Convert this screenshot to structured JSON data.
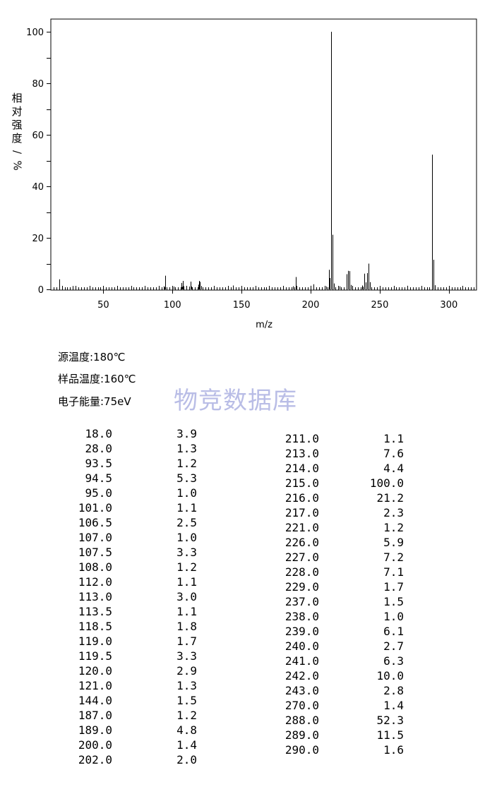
{
  "chart_data": {
    "type": "bar",
    "xlabel": "m/z",
    "ylabel": "相对强度/%",
    "xlim": [
      12,
      320
    ],
    "ylim": [
      0,
      100
    ],
    "xticks": [
      50,
      100,
      150,
      200,
      250,
      300
    ],
    "yticks": [
      0,
      20,
      40,
      60,
      80,
      100
    ],
    "grid": false,
    "peaks": [
      {
        "mz": 18.0,
        "intensity": 3.9
      },
      {
        "mz": 28.0,
        "intensity": 1.3
      },
      {
        "mz": 93.5,
        "intensity": 1.2
      },
      {
        "mz": 94.5,
        "intensity": 5.3
      },
      {
        "mz": 95.0,
        "intensity": 1.0
      },
      {
        "mz": 101.0,
        "intensity": 1.1
      },
      {
        "mz": 106.5,
        "intensity": 2.5
      },
      {
        "mz": 107.0,
        "intensity": 1.0
      },
      {
        "mz": 107.5,
        "intensity": 3.3
      },
      {
        "mz": 108.0,
        "intensity": 1.2
      },
      {
        "mz": 112.0,
        "intensity": 1.1
      },
      {
        "mz": 113.0,
        "intensity": 3.0
      },
      {
        "mz": 113.5,
        "intensity": 1.1
      },
      {
        "mz": 118.5,
        "intensity": 1.8
      },
      {
        "mz": 119.0,
        "intensity": 1.7
      },
      {
        "mz": 119.5,
        "intensity": 3.3
      },
      {
        "mz": 120.0,
        "intensity": 2.9
      },
      {
        "mz": 121.0,
        "intensity": 1.3
      },
      {
        "mz": 144.0,
        "intensity": 1.5
      },
      {
        "mz": 187.0,
        "intensity": 1.2
      },
      {
        "mz": 189.0,
        "intensity": 4.8
      },
      {
        "mz": 200.0,
        "intensity": 1.4
      },
      {
        "mz": 202.0,
        "intensity": 2.0
      },
      {
        "mz": 211.0,
        "intensity": 1.1
      },
      {
        "mz": 213.0,
        "intensity": 7.6
      },
      {
        "mz": 214.0,
        "intensity": 4.4
      },
      {
        "mz": 215.0,
        "intensity": 100.0
      },
      {
        "mz": 216.0,
        "intensity": 21.2
      },
      {
        "mz": 217.0,
        "intensity": 2.3
      },
      {
        "mz": 221.0,
        "intensity": 1.2
      },
      {
        "mz": 226.0,
        "intensity": 5.9
      },
      {
        "mz": 227.0,
        "intensity": 7.2
      },
      {
        "mz": 228.0,
        "intensity": 7.1
      },
      {
        "mz": 229.0,
        "intensity": 1.7
      },
      {
        "mz": 237.0,
        "intensity": 1.5
      },
      {
        "mz": 238.0,
        "intensity": 1.0
      },
      {
        "mz": 239.0,
        "intensity": 6.1
      },
      {
        "mz": 240.0,
        "intensity": 2.7
      },
      {
        "mz": 241.0,
        "intensity": 6.3
      },
      {
        "mz": 242.0,
        "intensity": 10.0
      },
      {
        "mz": 243.0,
        "intensity": 2.8
      },
      {
        "mz": 270.0,
        "intensity": 1.4
      },
      {
        "mz": 288.0,
        "intensity": 52.3
      },
      {
        "mz": 289.0,
        "intensity": 11.5
      },
      {
        "mz": 290.0,
        "intensity": 1.6
      }
    ]
  },
  "ylabel_chars": [
    "相",
    "对",
    "强",
    "度",
    "/",
    "%"
  ],
  "conditions": {
    "source_temp": "源温度:180℃",
    "sample_temp": "样品温度:160℃",
    "electron_energy": "电子能量:75eV"
  },
  "watermark": "物竞数据库",
  "peak_table": {
    "left": [
      [
        "18.0",
        "3.9"
      ],
      [
        "28.0",
        "1.3"
      ],
      [
        "93.5",
        "1.2"
      ],
      [
        "94.5",
        "5.3"
      ],
      [
        "95.0",
        "1.0"
      ],
      [
        "101.0",
        "1.1"
      ],
      [
        "106.5",
        "2.5"
      ],
      [
        "107.0",
        "1.0"
      ],
      [
        "107.5",
        "3.3"
      ],
      [
        "108.0",
        "1.2"
      ],
      [
        "112.0",
        "1.1"
      ],
      [
        "113.0",
        "3.0"
      ],
      [
        "113.5",
        "1.1"
      ],
      [
        "118.5",
        "1.8"
      ],
      [
        "119.0",
        "1.7"
      ],
      [
        "119.5",
        "3.3"
      ],
      [
        "120.0",
        "2.9"
      ],
      [
        "121.0",
        "1.3"
      ],
      [
        "144.0",
        "1.5"
      ],
      [
        "187.0",
        "1.2"
      ],
      [
        "189.0",
        "4.8"
      ],
      [
        "200.0",
        "1.4"
      ],
      [
        "202.0",
        "2.0"
      ]
    ],
    "right": [
      [
        "211.0",
        "1.1"
      ],
      [
        "213.0",
        "7.6"
      ],
      [
        "214.0",
        "4.4"
      ],
      [
        "215.0",
        "100.0"
      ],
      [
        "216.0",
        "21.2"
      ],
      [
        "217.0",
        "2.3"
      ],
      [
        "221.0",
        "1.2"
      ],
      [
        "226.0",
        "5.9"
      ],
      [
        "227.0",
        "7.2"
      ],
      [
        "228.0",
        "7.1"
      ],
      [
        "229.0",
        "1.7"
      ],
      [
        "237.0",
        "1.5"
      ],
      [
        "238.0",
        "1.0"
      ],
      [
        "239.0",
        "6.1"
      ],
      [
        "240.0",
        "2.7"
      ],
      [
        "241.0",
        "6.3"
      ],
      [
        "242.0",
        "10.0"
      ],
      [
        "243.0",
        "2.8"
      ],
      [
        "270.0",
        "1.4"
      ],
      [
        "288.0",
        "52.3"
      ],
      [
        "289.0",
        "11.5"
      ],
      [
        "290.0",
        "1.6"
      ]
    ]
  }
}
